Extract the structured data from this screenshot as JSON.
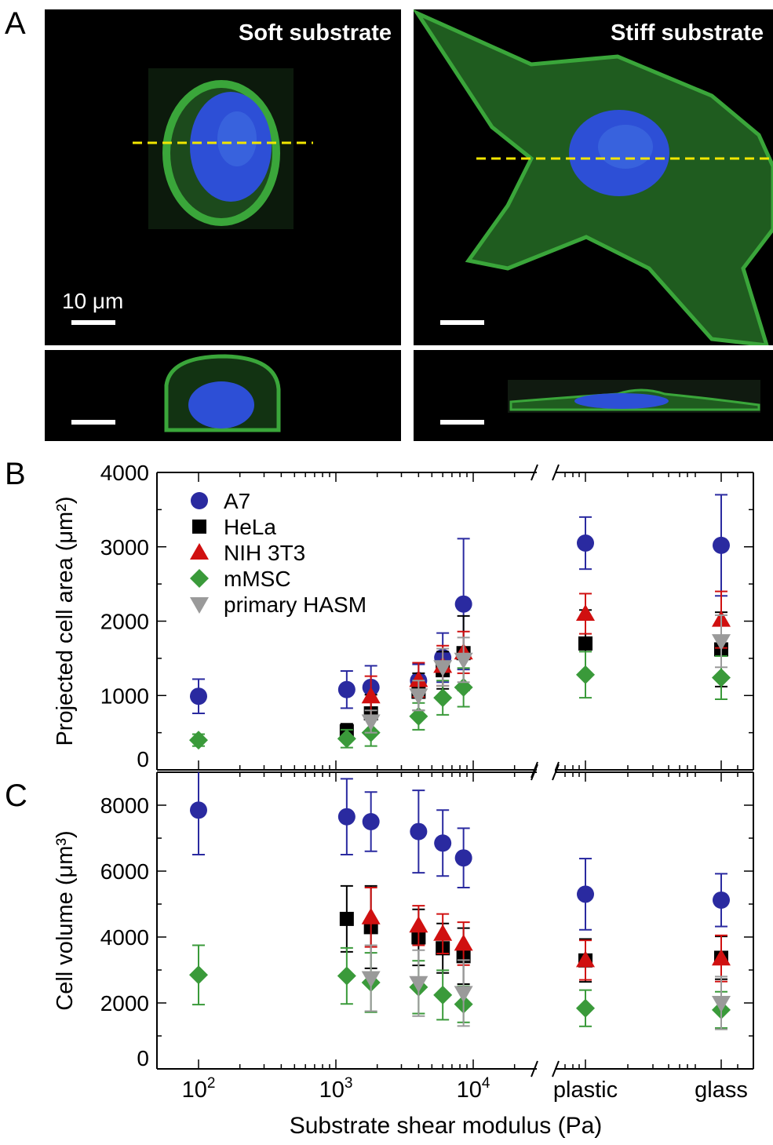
{
  "panels": {
    "a_label": "A",
    "b_label": "B",
    "c_label": "C"
  },
  "microscopy": {
    "soft_title": "Soft substrate",
    "stiff_title": "Stiff substrate",
    "scale_label": "10 μm",
    "colors": {
      "actin": "#3aa63a",
      "nucleus": "#2d4fd6",
      "cut_line": "#f2e600"
    }
  },
  "chart_data": [
    {
      "type": "scatter",
      "panel": "B",
      "ylabel": "Projected cell area (μm²)",
      "ylim": [
        0,
        4000
      ],
      "yticks": [
        0,
        1000,
        2000,
        3000,
        4000
      ],
      "x_scale": "log",
      "x_categories_after_break": [
        "plastic",
        "glass"
      ],
      "series": [
        {
          "name": "A7",
          "marker": "circle",
          "color": "#2a2aa0",
          "points": [
            {
              "x": 100,
              "y": 990,
              "err": 230
            },
            {
              "x": 1200,
              "y": 1080,
              "err": 250
            },
            {
              "x": 1800,
              "y": 1110,
              "err": 290
            },
            {
              "x": 4000,
              "y": 1200,
              "err": 220
            },
            {
              "x": 6000,
              "y": 1510,
              "err": 330
            },
            {
              "x": 8500,
              "y": 2230,
              "err": 880
            },
            {
              "x": "plastic",
              "y": 3050,
              "err": 350
            },
            {
              "x": "glass",
              "y": 3020,
              "err": 680
            }
          ]
        },
        {
          "name": "HeLa",
          "marker": "square",
          "color": "#000000",
          "points": [
            {
              "x": 1200,
              "y": 520,
              "err": 100
            },
            {
              "x": 1800,
              "y": 760,
              "err": 250
            },
            {
              "x": 4000,
              "y": 1050,
              "err": 250
            },
            {
              "x": 6000,
              "y": 1340,
              "err": 250
            },
            {
              "x": 8500,
              "y": 1570,
              "err": 500
            },
            {
              "x": "plastic",
              "y": 1700,
              "err": 450
            },
            {
              "x": "glass",
              "y": 1620,
              "err": 500
            }
          ]
        },
        {
          "name": "NIH 3T3",
          "marker": "triangle-up",
          "color": "#d01010",
          "points": [
            {
              "x": 1800,
              "y": 990,
              "err": 270
            },
            {
              "x": 4000,
              "y": 1210,
              "err": 230
            },
            {
              "x": 6000,
              "y": 1400,
              "err": 270
            },
            {
              "x": 8500,
              "y": 1580,
              "err": 280
            },
            {
              "x": "plastic",
              "y": 2100,
              "err": 270
            },
            {
              "x": "glass",
              "y": 2020,
              "err": 380
            }
          ]
        },
        {
          "name": "mMSC",
          "marker": "diamond",
          "color": "#3a9a3a",
          "points": [
            {
              "x": 100,
              "y": 400,
              "err": 80
            },
            {
              "x": 1200,
              "y": 420,
              "err": 120
            },
            {
              "x": 1800,
              "y": 500,
              "err": 180
            },
            {
              "x": 4000,
              "y": 720,
              "err": 180
            },
            {
              "x": 6000,
              "y": 970,
              "err": 230
            },
            {
              "x": 8500,
              "y": 1110,
              "err": 260
            },
            {
              "x": "plastic",
              "y": 1280,
              "err": 310
            },
            {
              "x": "glass",
              "y": 1240,
              "err": 290
            }
          ]
        },
        {
          "name": "primary HASM",
          "marker": "triangle-down",
          "color": "#9a9a9a",
          "points": [
            {
              "x": 1800,
              "y": 650,
              "err": 150
            },
            {
              "x": 4000,
              "y": 1000,
              "err": 200
            },
            {
              "x": 6000,
              "y": 1380,
              "err": 250
            },
            {
              "x": 8500,
              "y": 1480,
              "err": 300
            },
            {
              "x": "glass",
              "y": 1730,
              "err": 350
            }
          ]
        }
      ]
    },
    {
      "type": "scatter",
      "panel": "C",
      "ylabel": "Cell volume (μm³)",
      "xlabel": "Substrate shear modulus (Pa)",
      "ylim": [
        0,
        9000
      ],
      "yticks": [
        0,
        2000,
        4000,
        6000,
        8000
      ],
      "x_scale": "log",
      "xticks": [
        {
          "label": "10",
          "sup": "2",
          "x": 100
        },
        {
          "label": "10",
          "sup": "3",
          "x": 1000
        },
        {
          "label": "10",
          "sup": "4",
          "x": 10000
        },
        {
          "label": "plastic",
          "x": "plastic"
        },
        {
          "label": "glass",
          "x": "glass"
        }
      ],
      "series": [
        {
          "name": "A7",
          "marker": "circle",
          "color": "#2a2aa0",
          "points": [
            {
              "x": 100,
              "y": 7850,
              "err": 1350
            },
            {
              "x": 1200,
              "y": 7650,
              "err": 1150
            },
            {
              "x": 1800,
              "y": 7500,
              "err": 900
            },
            {
              "x": 4000,
              "y": 7200,
              "err": 1250
            },
            {
              "x": 6000,
              "y": 6850,
              "err": 1000
            },
            {
              "x": 8500,
              "y": 6400,
              "err": 900
            },
            {
              "x": "plastic",
              "y": 5300,
              "err": 1080
            },
            {
              "x": "glass",
              "y": 5120,
              "err": 800
            }
          ]
        },
        {
          "name": "HeLa",
          "marker": "square",
          "color": "#000000",
          "points": [
            {
              "x": 1200,
              "y": 4550,
              "err": 1000
            },
            {
              "x": 1800,
              "y": 4300,
              "err": 1250
            },
            {
              "x": 4000,
              "y": 3990,
              "err": 850
            },
            {
              "x": 6000,
              "y": 3660,
              "err": 750
            },
            {
              "x": 8500,
              "y": 3420,
              "err": 850
            },
            {
              "x": "plastic",
              "y": 3290,
              "err": 650
            },
            {
              "x": "glass",
              "y": 3370,
              "err": 650
            }
          ]
        },
        {
          "name": "NIH 3T3",
          "marker": "triangle-up",
          "color": "#d01010",
          "points": [
            {
              "x": 1800,
              "y": 4600,
              "err": 900
            },
            {
              "x": 4000,
              "y": 4350,
              "err": 600
            },
            {
              "x": 6000,
              "y": 4100,
              "err": 600
            },
            {
              "x": 8500,
              "y": 3800,
              "err": 650
            },
            {
              "x": "plastic",
              "y": 3300,
              "err": 600
            },
            {
              "x": "glass",
              "y": 3350,
              "err": 700
            }
          ]
        },
        {
          "name": "mMSC",
          "marker": "diamond",
          "color": "#3a9a3a",
          "points": [
            {
              "x": 100,
              "y": 2850,
              "err": 900
            },
            {
              "x": 1200,
              "y": 2820,
              "err": 850
            },
            {
              "x": 1800,
              "y": 2620,
              "err": 900
            },
            {
              "x": 4000,
              "y": 2480,
              "err": 800
            },
            {
              "x": 6000,
              "y": 2240,
              "err": 750
            },
            {
              "x": 8500,
              "y": 1960,
              "err": 550
            },
            {
              "x": "plastic",
              "y": 1840,
              "err": 550
            },
            {
              "x": "glass",
              "y": 1790,
              "err": 550
            }
          ]
        },
        {
          "name": "primary HASM",
          "marker": "triangle-down",
          "color": "#9a9a9a",
          "points": [
            {
              "x": 1800,
              "y": 2750,
              "err": 1000
            },
            {
              "x": 4000,
              "y": 2600,
              "err": 1000
            },
            {
              "x": 8500,
              "y": 2300,
              "err": 1000
            },
            {
              "x": "glass",
              "y": 2000,
              "err": 800
            }
          ]
        }
      ]
    }
  ]
}
